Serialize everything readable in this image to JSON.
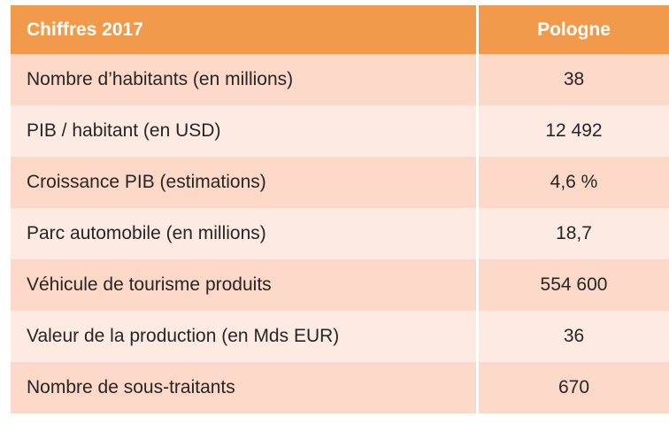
{
  "table": {
    "header": {
      "label": "Chiffres 2017",
      "value": "Pologne"
    },
    "rows": [
      {
        "label": "Nombre d’habitants (en millions)",
        "value": "38"
      },
      {
        "label": "PIB / habitant (en USD)",
        "value": "12 492"
      },
      {
        "label": "Croissance PIB (estimations)",
        "value": "4,6 %"
      },
      {
        "label": "Parc automobile (en millions)",
        "value": "18,7"
      },
      {
        "label": "Véhicule de tourisme produits",
        "value": "554 600"
      },
      {
        "label": "Valeur de la production (en Mds EUR)",
        "value": "36"
      },
      {
        "label": "Nombre de sous-traitants",
        "value": "670"
      }
    ]
  },
  "colors": {
    "header": "#f29a4b",
    "row_dark": "#fbd8c8",
    "row_light": "#fdebe3"
  }
}
